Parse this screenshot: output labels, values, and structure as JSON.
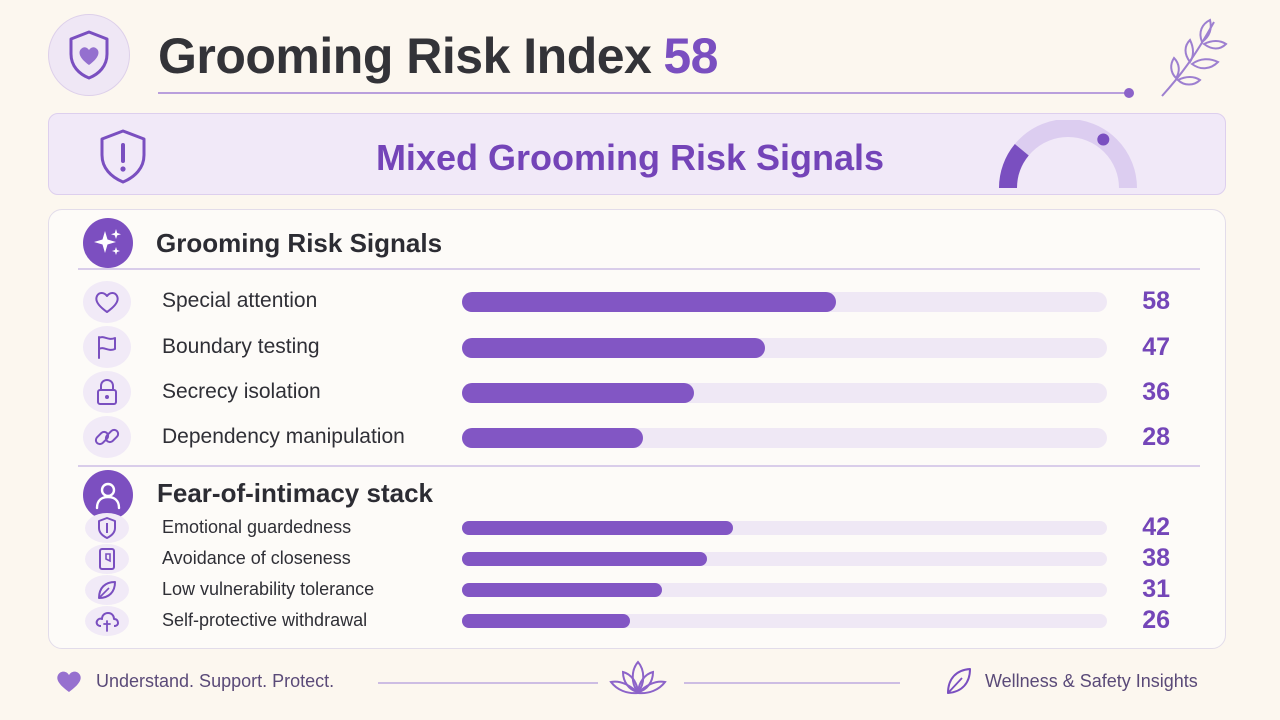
{
  "header": {
    "title": "Grooming Risk Index",
    "score": "58",
    "logo_icon": "shield-heart-icon",
    "decor_icon": "leaf-branch-icon"
  },
  "banner": {
    "title": "Mixed Grooming Risk Signals",
    "icon": "shield-alert-icon",
    "gauge_level": 0.58
  },
  "sections": [
    {
      "title": "Grooming Risk Signals",
      "icon": "sparkles-icon",
      "items": [
        {
          "label": "Special attention",
          "value": 58,
          "icon": "heart-icon"
        },
        {
          "label": "Boundary testing",
          "value": 47,
          "icon": "flag-icon"
        },
        {
          "label": "Secrecy isolation",
          "value": 36,
          "icon": "lock-icon"
        },
        {
          "label": "Dependency manipulation",
          "value": 28,
          "icon": "link-icon"
        }
      ]
    },
    {
      "title": "Fear-of-intimacy stack",
      "icon": "user-icon",
      "items": [
        {
          "label": "Emotional guardedness",
          "value": 42,
          "icon": "shield-icon"
        },
        {
          "label": "Avoidance of closeness",
          "value": 38,
          "icon": "door-icon"
        },
        {
          "label": "Low vulnerability tolerance",
          "value": 31,
          "icon": "leaf-icon"
        },
        {
          "label": "Self-protective withdrawal",
          "value": 26,
          "icon": "cloud-icon"
        }
      ]
    }
  ],
  "footer": {
    "left_text": "Understand. Support. Protect.",
    "right_text": "Wellness & Safety Insights",
    "left_icon": "heart-icon",
    "center_icon": "lotus-icon",
    "right_icon": "leaf-icon"
  },
  "colors": {
    "accent": "#7a4fc0",
    "bar_fill": "#8256c4",
    "bar_track": "#efe8f5",
    "background": "#fcf7ef"
  }
}
